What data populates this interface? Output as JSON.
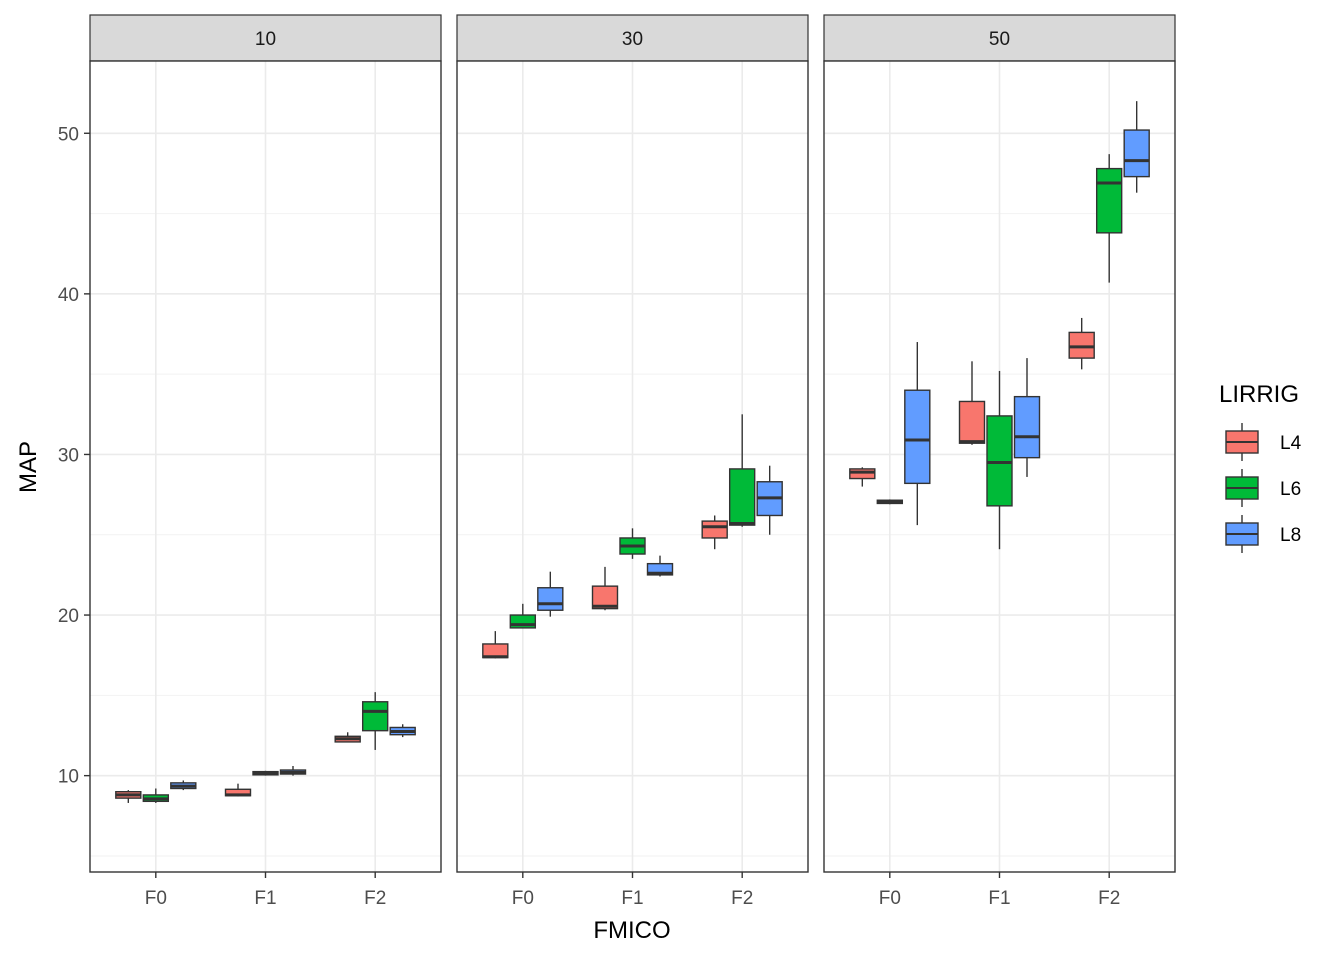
{
  "chart_data": {
    "type": "boxplot",
    "facet_variable": "",
    "facets": [
      "10",
      "30",
      "50"
    ],
    "categories": [
      "F0",
      "F1",
      "F2"
    ],
    "xlabel": "FMICO",
    "ylabel": "MAP",
    "yticks": [
      10,
      20,
      30,
      40,
      50
    ],
    "ylim": [
      4,
      54.5
    ],
    "grid": true,
    "legend": {
      "title": "LIRRIG",
      "position": "right",
      "entries": [
        {
          "name": "L4",
          "color": "#F8766D"
        },
        {
          "name": "L6",
          "color": "#00BA38"
        },
        {
          "name": "L8",
          "color": "#619CFF"
        }
      ]
    },
    "boxes": [
      {
        "facet": "10",
        "category": "F0",
        "group": "L4",
        "min": 8.3,
        "q1": 8.6,
        "median": 8.8,
        "q3": 9.0,
        "max": 9.1
      },
      {
        "facet": "10",
        "category": "F0",
        "group": "L6",
        "min": 8.3,
        "q1": 8.4,
        "median": 8.55,
        "q3": 8.8,
        "max": 9.2
      },
      {
        "facet": "10",
        "category": "F0",
        "group": "L8",
        "min": 9.1,
        "q1": 9.2,
        "median": 9.35,
        "q3": 9.55,
        "max": 9.7
      },
      {
        "facet": "10",
        "category": "F1",
        "group": "L4",
        "min": 8.7,
        "q1": 8.75,
        "median": 8.8,
        "q3": 9.15,
        "max": 9.5
      },
      {
        "facet": "10",
        "category": "F1",
        "group": "L6",
        "min": 10.0,
        "q1": 10.05,
        "median": 10.15,
        "q3": 10.25,
        "max": 10.3
      },
      {
        "facet": "10",
        "category": "F1",
        "group": "L8",
        "min": 10.0,
        "q1": 10.1,
        "median": 10.2,
        "q3": 10.35,
        "max": 10.6
      },
      {
        "facet": "10",
        "category": "F2",
        "group": "L4",
        "min": 12.1,
        "q1": 12.1,
        "median": 12.3,
        "q3": 12.45,
        "max": 12.7
      },
      {
        "facet": "10",
        "category": "F2",
        "group": "L6",
        "min": 11.6,
        "q1": 12.8,
        "median": 14.0,
        "q3": 14.6,
        "max": 15.2
      },
      {
        "facet": "10",
        "category": "F2",
        "group": "L8",
        "min": 12.4,
        "q1": 12.55,
        "median": 12.75,
        "q3": 13.0,
        "max": 13.2
      },
      {
        "facet": "30",
        "category": "F0",
        "group": "L4",
        "min": 17.3,
        "q1": 17.35,
        "median": 17.4,
        "q3": 18.2,
        "max": 19.0
      },
      {
        "facet": "30",
        "category": "F0",
        "group": "L6",
        "min": 19.2,
        "q1": 19.2,
        "median": 19.4,
        "q3": 20.0,
        "max": 20.7
      },
      {
        "facet": "30",
        "category": "F0",
        "group": "L8",
        "min": 19.9,
        "q1": 20.3,
        "median": 20.7,
        "q3": 21.7,
        "max": 22.7
      },
      {
        "facet": "30",
        "category": "F1",
        "group": "L4",
        "min": 20.3,
        "q1": 20.4,
        "median": 20.55,
        "q3": 21.8,
        "max": 23.0
      },
      {
        "facet": "30",
        "category": "F1",
        "group": "L6",
        "min": 23.5,
        "q1": 23.8,
        "median": 24.3,
        "q3": 24.8,
        "max": 25.4
      },
      {
        "facet": "30",
        "category": "F1",
        "group": "L8",
        "min": 22.4,
        "q1": 22.5,
        "median": 22.6,
        "q3": 23.2,
        "max": 23.7
      },
      {
        "facet": "30",
        "category": "F2",
        "group": "L4",
        "min": 24.1,
        "q1": 24.8,
        "median": 25.5,
        "q3": 25.85,
        "max": 26.2
      },
      {
        "facet": "30",
        "category": "F2",
        "group": "L6",
        "min": 25.5,
        "q1": 25.6,
        "median": 25.7,
        "q3": 29.1,
        "max": 32.5
      },
      {
        "facet": "30",
        "category": "F2",
        "group": "L8",
        "min": 25.0,
        "q1": 26.2,
        "median": 27.3,
        "q3": 28.3,
        "max": 29.3
      },
      {
        "facet": "50",
        "category": "F0",
        "group": "L4",
        "min": 28.0,
        "q1": 28.5,
        "median": 28.9,
        "q3": 29.1,
        "max": 29.2
      },
      {
        "facet": "50",
        "category": "F0",
        "group": "L6",
        "min": 26.9,
        "q1": 26.95,
        "median": 27.05,
        "q3": 27.15,
        "max": 27.2
      },
      {
        "facet": "50",
        "category": "F0",
        "group": "L8",
        "min": 25.6,
        "q1": 28.2,
        "median": 30.9,
        "q3": 34.0,
        "max": 37.0
      },
      {
        "facet": "50",
        "category": "F1",
        "group": "L4",
        "min": 30.6,
        "q1": 30.7,
        "median": 30.8,
        "q3": 33.3,
        "max": 35.8
      },
      {
        "facet": "50",
        "category": "F1",
        "group": "L6",
        "min": 24.1,
        "q1": 26.8,
        "median": 29.5,
        "q3": 32.4,
        "max": 35.2
      },
      {
        "facet": "50",
        "category": "F1",
        "group": "L8",
        "min": 28.6,
        "q1": 29.8,
        "median": 31.1,
        "q3": 33.6,
        "max": 36.0
      },
      {
        "facet": "50",
        "category": "F2",
        "group": "L4",
        "min": 35.3,
        "q1": 36.0,
        "median": 36.7,
        "q3": 37.6,
        "max": 38.5
      },
      {
        "facet": "50",
        "category": "F2",
        "group": "L6",
        "min": 40.7,
        "q1": 43.8,
        "median": 46.9,
        "q3": 47.8,
        "max": 48.7
      },
      {
        "facet": "50",
        "category": "F2",
        "group": "L8",
        "min": 46.3,
        "q1": 47.3,
        "median": 48.3,
        "q3": 50.2,
        "max": 52.0
      }
    ]
  }
}
